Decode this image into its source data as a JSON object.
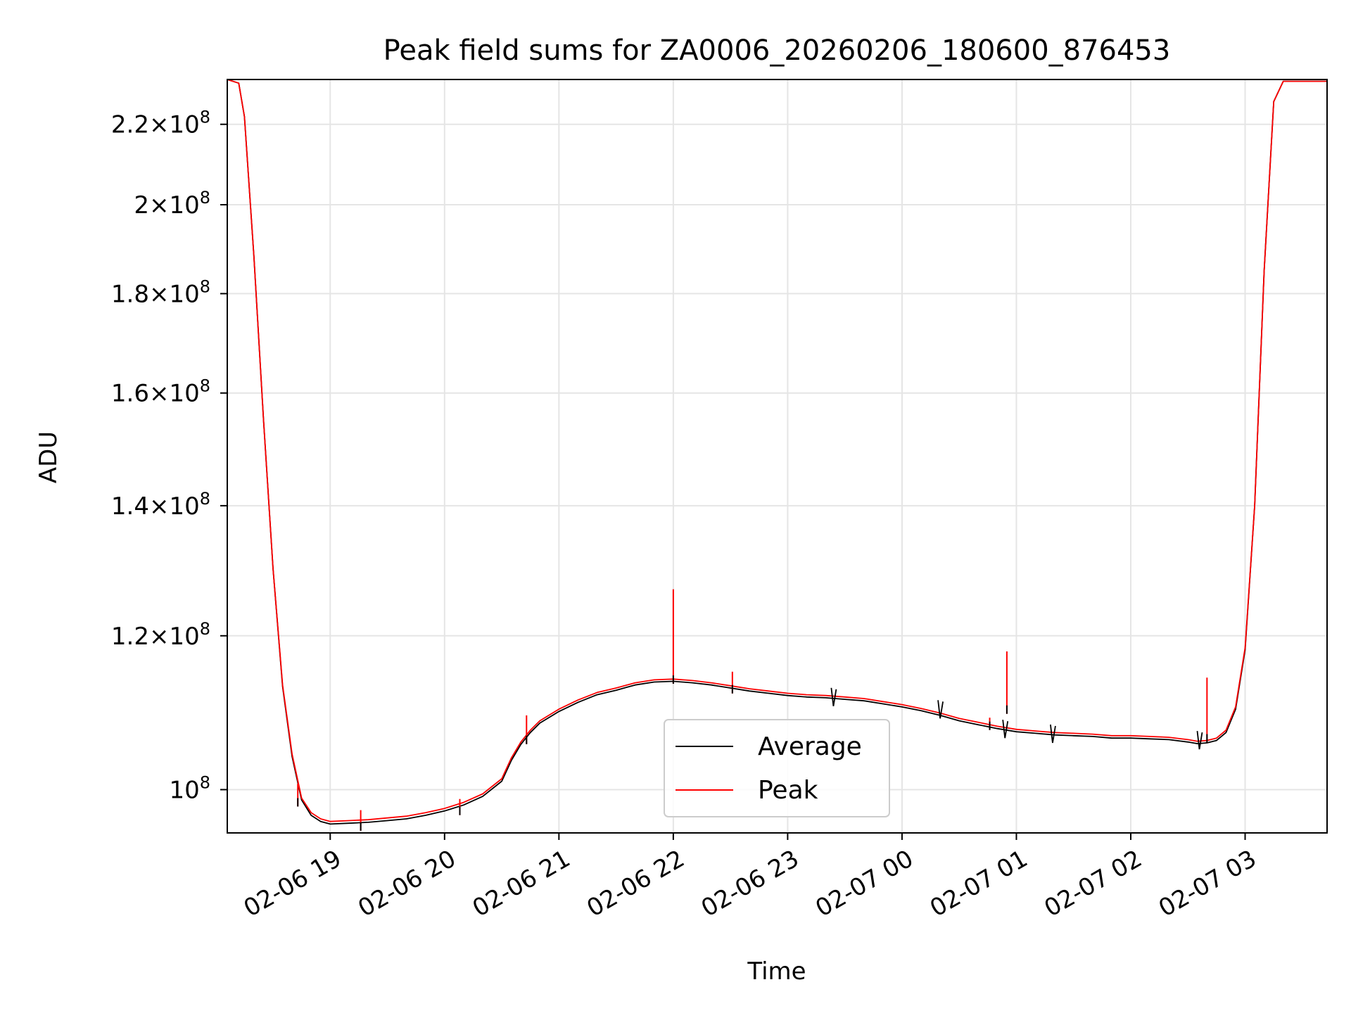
{
  "chart_data": {
    "type": "line",
    "title": "Peak field sums for ZA0006_20260206_180600_876453",
    "xlabel": "Time",
    "ylabel": "ADU",
    "yscale": "log",
    "xlim": [
      "2026-02-06T18:06",
      "2026-02-07T03:43"
    ],
    "ylim": [
      95000000,
      232000000
    ],
    "x_ticks": [
      {
        "t": "2026-02-06T19:00",
        "label": "02-06 19"
      },
      {
        "t": "2026-02-06T20:00",
        "label": "02-06 20"
      },
      {
        "t": "2026-02-06T21:00",
        "label": "02-06 21"
      },
      {
        "t": "2026-02-06T22:00",
        "label": "02-06 22"
      },
      {
        "t": "2026-02-06T23:00",
        "label": "02-06 23"
      },
      {
        "t": "2026-02-07T00:00",
        "label": "02-07 00"
      },
      {
        "t": "2026-02-07T01:00",
        "label": "02-07 01"
      },
      {
        "t": "2026-02-07T02:00",
        "label": "02-07 02"
      },
      {
        "t": "2026-02-07T03:00",
        "label": "02-07 03"
      }
    ],
    "y_ticks": [
      {
        "v": 100000000,
        "mant": "",
        "exp": "8"
      },
      {
        "v": 120000000,
        "mant": "1.2",
        "exp": "8"
      },
      {
        "v": 140000000,
        "mant": "1.4",
        "exp": "8"
      },
      {
        "v": 160000000,
        "mant": "1.6",
        "exp": "8"
      },
      {
        "v": 180000000,
        "mant": "1.8",
        "exp": "8"
      },
      {
        "v": 200000000,
        "mant": "2",
        "exp": "8"
      },
      {
        "v": 220000000,
        "mant": "2.2",
        "exp": "8"
      }
    ],
    "grid": true,
    "legend_position": "lower-center",
    "series": [
      {
        "name": "Average",
        "color": "#000000",
        "x": [
          "2026-02-06T18:06",
          "2026-02-06T18:12",
          "2026-02-06T18:15",
          "2026-02-06T18:20",
          "2026-02-06T18:25",
          "2026-02-06T18:30",
          "2026-02-06T18:35",
          "2026-02-06T18:40",
          "2026-02-06T18:45",
          "2026-02-06T18:50",
          "2026-02-06T18:55",
          "2026-02-06T19:00",
          "2026-02-06T19:10",
          "2026-02-06T19:20",
          "2026-02-06T19:30",
          "2026-02-06T19:40",
          "2026-02-06T19:50",
          "2026-02-06T20:00",
          "2026-02-06T20:10",
          "2026-02-06T20:20",
          "2026-02-06T20:30",
          "2026-02-06T20:35",
          "2026-02-06T20:40",
          "2026-02-06T20:45",
          "2026-02-06T20:50",
          "2026-02-06T21:00",
          "2026-02-06T21:10",
          "2026-02-06T21:20",
          "2026-02-06T21:30",
          "2026-02-06T21:40",
          "2026-02-06T21:50",
          "2026-02-06T22:00",
          "2026-02-06T22:10",
          "2026-02-06T22:20",
          "2026-02-06T22:30",
          "2026-02-06T22:40",
          "2026-02-06T22:50",
          "2026-02-06T23:00",
          "2026-02-06T23:10",
          "2026-02-06T23:20",
          "2026-02-06T23:30",
          "2026-02-06T23:40",
          "2026-02-06T23:50",
          "2026-02-07T00:00",
          "2026-02-07T00:10",
          "2026-02-07T00:20",
          "2026-02-07T00:30",
          "2026-02-07T00:40",
          "2026-02-07T00:50",
          "2026-02-07T01:00",
          "2026-02-07T01:10",
          "2026-02-07T01:20",
          "2026-02-07T01:30",
          "2026-02-07T01:40",
          "2026-02-07T01:50",
          "2026-02-07T02:00",
          "2026-02-07T02:10",
          "2026-02-07T02:20",
          "2026-02-07T02:30",
          "2026-02-07T02:35",
          "2026-02-07T02:40",
          "2026-02-07T02:45",
          "2026-02-07T02:50",
          "2026-02-07T02:55",
          "2026-02-07T03:00",
          "2026-02-07T03:05",
          "2026-02-07T03:10",
          "2026-02-07T03:15",
          "2026-02-07T03:20",
          "2026-02-07T03:43"
        ],
        "y": [
          232000000,
          231000000,
          222000000,
          188000000,
          155000000,
          130000000,
          113000000,
          104000000,
          98800000,
          97000000,
          96300000,
          96000000,
          96100000,
          96200000,
          96400000,
          96600000,
          97000000,
          97500000,
          98200000,
          99200000,
          101000000,
          103500000,
          105500000,
          107000000,
          108200000,
          109700000,
          110900000,
          111900000,
          112500000,
          113200000,
          113600000,
          113700000,
          113500000,
          113200000,
          112800000,
          112400000,
          112100000,
          111800000,
          111600000,
          111500000,
          111300000,
          111100000,
          110700000,
          110300000,
          109800000,
          109200000,
          108500000,
          108000000,
          107500000,
          107100000,
          106900000,
          106700000,
          106600000,
          106500000,
          106300000,
          106300000,
          106200000,
          106100000,
          105800000,
          105600000,
          105700000,
          106000000,
          107000000,
          110000000,
          118000000,
          140000000,
          185000000,
          226000000,
          231500000,
          231500000
        ]
      },
      {
        "name": "Peak",
        "color": "#ff0000",
        "x": [
          "2026-02-06T18:06",
          "2026-02-06T18:12",
          "2026-02-06T18:15",
          "2026-02-06T18:20",
          "2026-02-06T18:25",
          "2026-02-06T18:30",
          "2026-02-06T18:35",
          "2026-02-06T18:40",
          "2026-02-06T18:45",
          "2026-02-06T18:50",
          "2026-02-06T18:55",
          "2026-02-06T19:00",
          "2026-02-06T19:10",
          "2026-02-06T19:20",
          "2026-02-06T19:30",
          "2026-02-06T19:40",
          "2026-02-06T19:50",
          "2026-02-06T20:00",
          "2026-02-06T20:10",
          "2026-02-06T20:20",
          "2026-02-06T20:30",
          "2026-02-06T20:35",
          "2026-02-06T20:40",
          "2026-02-06T20:45",
          "2026-02-06T20:50",
          "2026-02-06T21:00",
          "2026-02-06T21:10",
          "2026-02-06T21:20",
          "2026-02-06T21:30",
          "2026-02-06T21:40",
          "2026-02-06T21:50",
          "2026-02-06T22:00",
          "2026-02-06T22:10",
          "2026-02-06T22:20",
          "2026-02-06T22:30",
          "2026-02-06T22:40",
          "2026-02-06T22:50",
          "2026-02-06T23:00",
          "2026-02-06T23:10",
          "2026-02-06T23:20",
          "2026-02-06T23:30",
          "2026-02-06T23:40",
          "2026-02-06T23:50",
          "2026-02-07T00:00",
          "2026-02-07T00:10",
          "2026-02-07T00:20",
          "2026-02-07T00:30",
          "2026-02-07T00:40",
          "2026-02-07T00:50",
          "2026-02-07T01:00",
          "2026-02-07T01:10",
          "2026-02-07T01:20",
          "2026-02-07T01:30",
          "2026-02-07T01:40",
          "2026-02-07T01:50",
          "2026-02-07T02:00",
          "2026-02-07T02:10",
          "2026-02-07T02:20",
          "2026-02-07T02:30",
          "2026-02-07T02:35",
          "2026-02-07T02:40",
          "2026-02-07T02:45",
          "2026-02-07T02:50",
          "2026-02-07T02:55",
          "2026-02-07T03:00",
          "2026-02-07T03:05",
          "2026-02-07T03:10",
          "2026-02-07T03:15",
          "2026-02-07T03:20",
          "2026-02-07T03:43"
        ],
        "y": [
          232000000,
          231000000,
          222000000,
          188000000,
          155000000,
          130000000,
          113200000,
          104300000,
          99000000,
          97300000,
          96600000,
          96300000,
          96400000,
          96500000,
          96700000,
          96900000,
          97300000,
          97800000,
          98500000,
          99500000,
          101300000,
          103800000,
          105800000,
          107300000,
          108500000,
          110000000,
          111200000,
          112200000,
          112800000,
          113500000,
          113900000,
          114000000,
          113800000,
          113500000,
          113100000,
          112700000,
          112400000,
          112100000,
          111900000,
          111800000,
          111600000,
          111400000,
          111000000,
          110600000,
          110100000,
          109500000,
          108800000,
          108300000,
          107800000,
          107400000,
          107200000,
          107000000,
          106900000,
          106800000,
          106600000,
          106600000,
          106500000,
          106400000,
          106100000,
          105900000,
          106000000,
          106300000,
          107300000,
          110300000,
          118300000,
          140000000,
          185000000,
          226000000,
          231500000,
          231500000
        ]
      }
    ],
    "spikes": [
      {
        "t": "2026-02-06T18:43",
        "peak": 100700000,
        "avg": 99000000
      },
      {
        "t": "2026-02-06T19:16",
        "peak": 97600000,
        "avg": 96200000
      },
      {
        "t": "2026-02-06T20:08",
        "peak": 98900000,
        "avg": 98000000
      },
      {
        "t": "2026-02-06T20:43",
        "peak": 109200000,
        "avg": 106600000
      },
      {
        "t": "2026-02-06T22:00",
        "peak": 126800000,
        "avg": 114500000
      },
      {
        "t": "2026-02-06T22:31",
        "peak": 115000000,
        "avg": 113200000
      },
      {
        "t": "2026-02-07T00:46",
        "peak": 108900000,
        "avg": 108400000
      },
      {
        "t": "2026-02-07T00:55",
        "peak": 117800000,
        "avg": 110500000
      },
      {
        "t": "2026-02-07T02:40",
        "peak": 114200000,
        "avg": 106800000
      }
    ],
    "dips": [
      {
        "t": "2026-02-06T23:24",
        "v": 110400000
      },
      {
        "t": "2026-02-07T00:20",
        "v": 108800000
      },
      {
        "t": "2026-02-07T00:54",
        "v": 106300000
      },
      {
        "t": "2026-02-07T01:19",
        "v": 105700000
      },
      {
        "t": "2026-02-07T02:36",
        "v": 104900000
      }
    ]
  }
}
